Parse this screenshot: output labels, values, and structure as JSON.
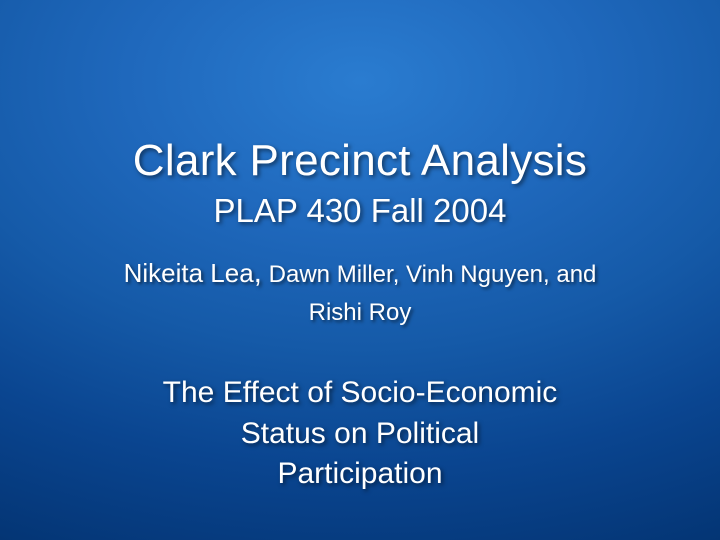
{
  "slide": {
    "background": {
      "gradient_center_color": "#2a7cd0",
      "gradient_outer_color": "#022a5e",
      "type": "radial-gradient"
    },
    "title": {
      "text": "Clark Precinct Analysis",
      "fontsize": 44,
      "color": "#ffffff"
    },
    "course": {
      "text": "PLAP 430 Fall 2004",
      "fontsize": 33,
      "color": "#ffffff"
    },
    "authors": {
      "lead_name": "Nikeita Lea",
      "rest_line1": " Dawn Miller, Vinh Nguyen, and",
      "rest_line2": "Rishi Roy",
      "fontsize": 24,
      "lead_fontsize": 26,
      "color": "#ffffff"
    },
    "subtitle": {
      "line1": "The Effect of Socio-Economic",
      "line2": "Status on Political",
      "line3": "Participation",
      "fontsize": 30,
      "color": "#ffffff"
    },
    "text_shadow_color": "rgba(0,0,0,0.55)",
    "font_family": "Arial"
  }
}
